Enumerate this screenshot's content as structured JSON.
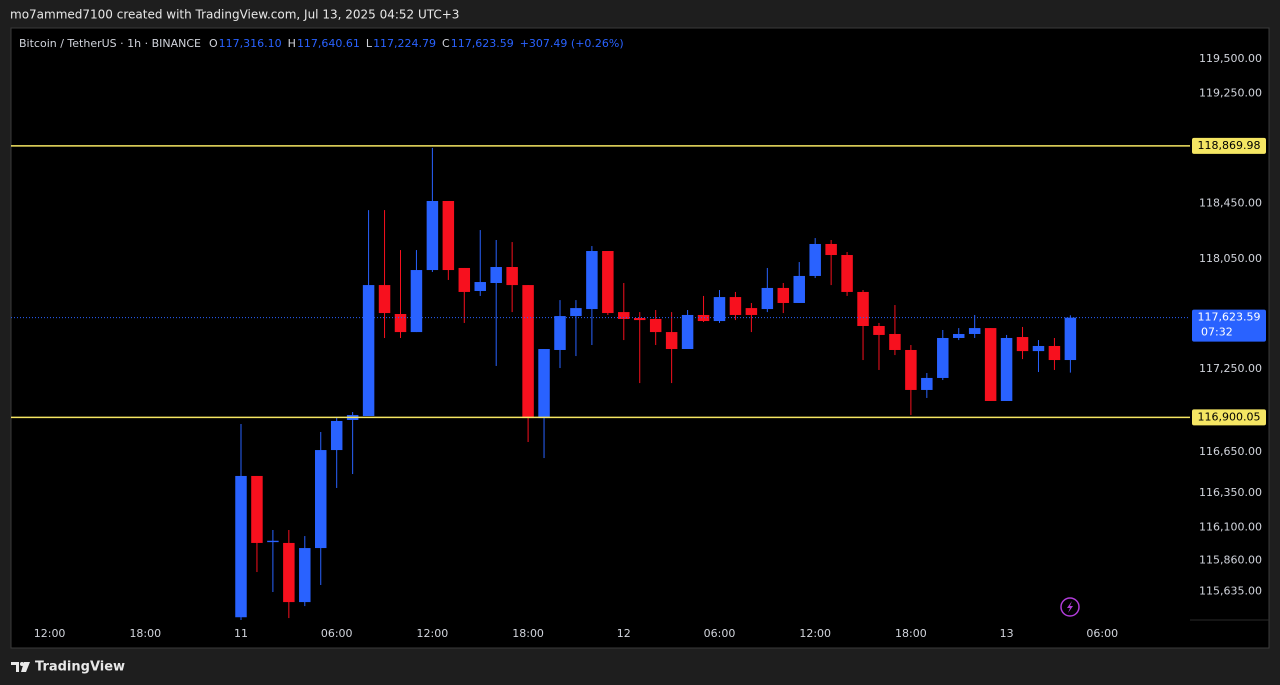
{
  "header": {
    "text": "mo7ammed7100 created with TradingView.com, Jul 13, 2025 04:52 UTC+3"
  },
  "footer": {
    "brand": "TradingView"
  },
  "chart_data": {
    "type": "candlestick",
    "symbol": "Bitcoin / TetherUS · 1h · BINANCE",
    "ohlc_legend": [
      {
        "key": "O",
        "value": "117,316.10"
      },
      {
        "key": "H",
        "value": "117,640.61"
      },
      {
        "key": "L",
        "value": "117,224.79"
      },
      {
        "key": "C",
        "value": "117,623.59"
      }
    ],
    "change": "+307.49 (+0.26%)",
    "x": [
      0,
      1,
      2,
      3,
      4,
      5,
      6,
      7,
      8,
      9,
      10,
      11,
      12,
      13,
      14,
      15,
      16,
      17,
      18,
      19,
      20,
      21,
      22,
      23,
      24,
      25,
      26,
      27,
      28,
      29,
      30,
      31,
      32,
      33,
      34,
      35,
      36,
      37,
      38,
      39,
      40,
      41,
      42,
      43,
      44,
      45,
      46,
      47,
      48,
      49,
      50,
      51,
      52
    ],
    "open": [
      115450,
      116475,
      115995,
      115989,
      115560,
      115952,
      116663,
      116881,
      116910,
      117860,
      117650,
      117519,
      117969,
      118470,
      117984,
      117817,
      117875,
      117991,
      117860,
      116895,
      117389,
      117635,
      117686,
      118107,
      117664,
      117621,
      117614,
      117519,
      117396,
      117643,
      117599,
      117773,
      117693,
      117686,
      117839,
      117730,
      117926,
      118158,
      118078,
      117810,
      117563,
      117505,
      117389,
      117099,
      117186,
      117476,
      117505,
      117548,
      117019,
      117483,
      117381,
      117418,
      117316.1
    ],
    "high": [
      116852,
      116475,
      116083,
      116083,
      116039,
      116794,
      116895,
      116939,
      118404,
      118404,
      118114,
      118114,
      118855,
      118470,
      117984,
      118259,
      118187,
      118172,
      117860,
      117396,
      117751,
      117751,
      118143,
      118107,
      117875,
      117664,
      117679,
      117664,
      117679,
      117781,
      117824,
      117810,
      117730,
      117984,
      117875,
      118027,
      118201,
      118187,
      118100,
      117824,
      117585,
      117715,
      117425,
      117222,
      117534,
      117548,
      117643,
      117548,
      117498,
      117556,
      117461,
      117476,
      117640.61
    ],
    "low": [
      115430,
      115778,
      115633,
      115444,
      115531,
      115684,
      116388,
      116489,
      116910,
      117476,
      117476,
      117519,
      117955,
      117897,
      117585,
      117781,
      117273,
      117664,
      116721,
      116605,
      117258,
      117345,
      117425,
      117643,
      117461,
      117149,
      117425,
      117149,
      117396,
      117592,
      117585,
      117606,
      117519,
      117664,
      117657,
      117730,
      117911,
      117860,
      117781,
      117316,
      117244,
      117352,
      116917,
      117041,
      117171,
      117461,
      117476,
      117019,
      117019,
      117323,
      117229,
      117244,
      117224.79
    ],
    "close": [
      116475,
      115989,
      116005,
      115560,
      115952,
      116663,
      116874,
      116917,
      117860,
      117657,
      117519,
      117969,
      118470,
      117969,
      117810,
      117882,
      117991,
      117860,
      116895,
      117396,
      117635,
      117693,
      118107,
      117657,
      117614,
      117606,
      117519,
      117396,
      117643,
      117599,
      117773,
      117643,
      117643,
      117839,
      117730,
      117926,
      118158,
      118078,
      117810,
      117563,
      117498,
      117389,
      117099,
      117186,
      117476,
      117505,
      117548,
      117019,
      117476,
      117381,
      117418,
      117316.1,
      117623.59
    ],
    "up_color": "#2962ff",
    "down_color": "#f7101e",
    "ylim": [
      115430,
      119725
    ],
    "yticks": [
      {
        "value": 119500,
        "label": "119,500.00"
      },
      {
        "value": 119250,
        "label": "119,250.00"
      },
      {
        "value": 118450,
        "label": "118,450.00"
      },
      {
        "value": 118050,
        "label": "118,050.00"
      },
      {
        "value": 117250,
        "label": "117,250.00"
      },
      {
        "value": 116650,
        "label": "116,650.00"
      },
      {
        "value": 116350,
        "label": "116,350.00"
      },
      {
        "value": 116100,
        "label": "116,100.00"
      },
      {
        "value": 115860,
        "label": "115,860.00"
      },
      {
        "value": 115635,
        "label": "115,635.00"
      }
    ],
    "xlim": [
      -14.42,
      59.5
    ],
    "xticks": [
      {
        "value": -12,
        "label": "12:00"
      },
      {
        "value": -6,
        "label": "18:00"
      },
      {
        "value": 0,
        "label": "11"
      },
      {
        "value": 6,
        "label": "06:00"
      },
      {
        "value": 12,
        "label": "12:00"
      },
      {
        "value": 18,
        "label": "18:00"
      },
      {
        "value": 24,
        "label": "12"
      },
      {
        "value": 30,
        "label": "06:00"
      },
      {
        "value": 36,
        "label": "12:00"
      },
      {
        "value": 42,
        "label": "18:00"
      },
      {
        "value": 48,
        "label": "13"
      },
      {
        "value": 54,
        "label": "06:00"
      }
    ],
    "levels": [
      {
        "value": 118869.98,
        "label": "118,869.98"
      },
      {
        "value": 116900.05,
        "label": "116,900.05"
      }
    ],
    "level_color": "#f5e663",
    "last_price": {
      "value": 117623.59,
      "label": "117,623.59",
      "countdown": "07:32"
    }
  }
}
